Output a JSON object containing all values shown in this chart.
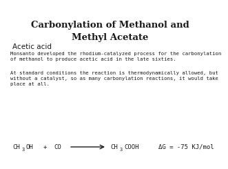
{
  "title": "Carbonylation of Methanol and\nMethyl Acetate",
  "subtitle": "Acetic acid",
  "body1": "Monsanto developed the rhodium-catalyzed process for the carbonylation\nof methanol to produce acetic acid in the late sixties.",
  "body2": "At standard conditions the reaction is thermodynamically allowed, but\nwithout a catalyst, so as many carbonylation reactions, it would take\nplace at all.",
  "rxn_dg": "ΔG = -75 KJ/mol",
  "bg_color": "#ffffff",
  "text_color": "#1a1a1a",
  "title_fontsize": 9.5,
  "subtitle_fontsize": 7.5,
  "body_fontsize": 5.2,
  "rxn_fontsize": 6.5
}
